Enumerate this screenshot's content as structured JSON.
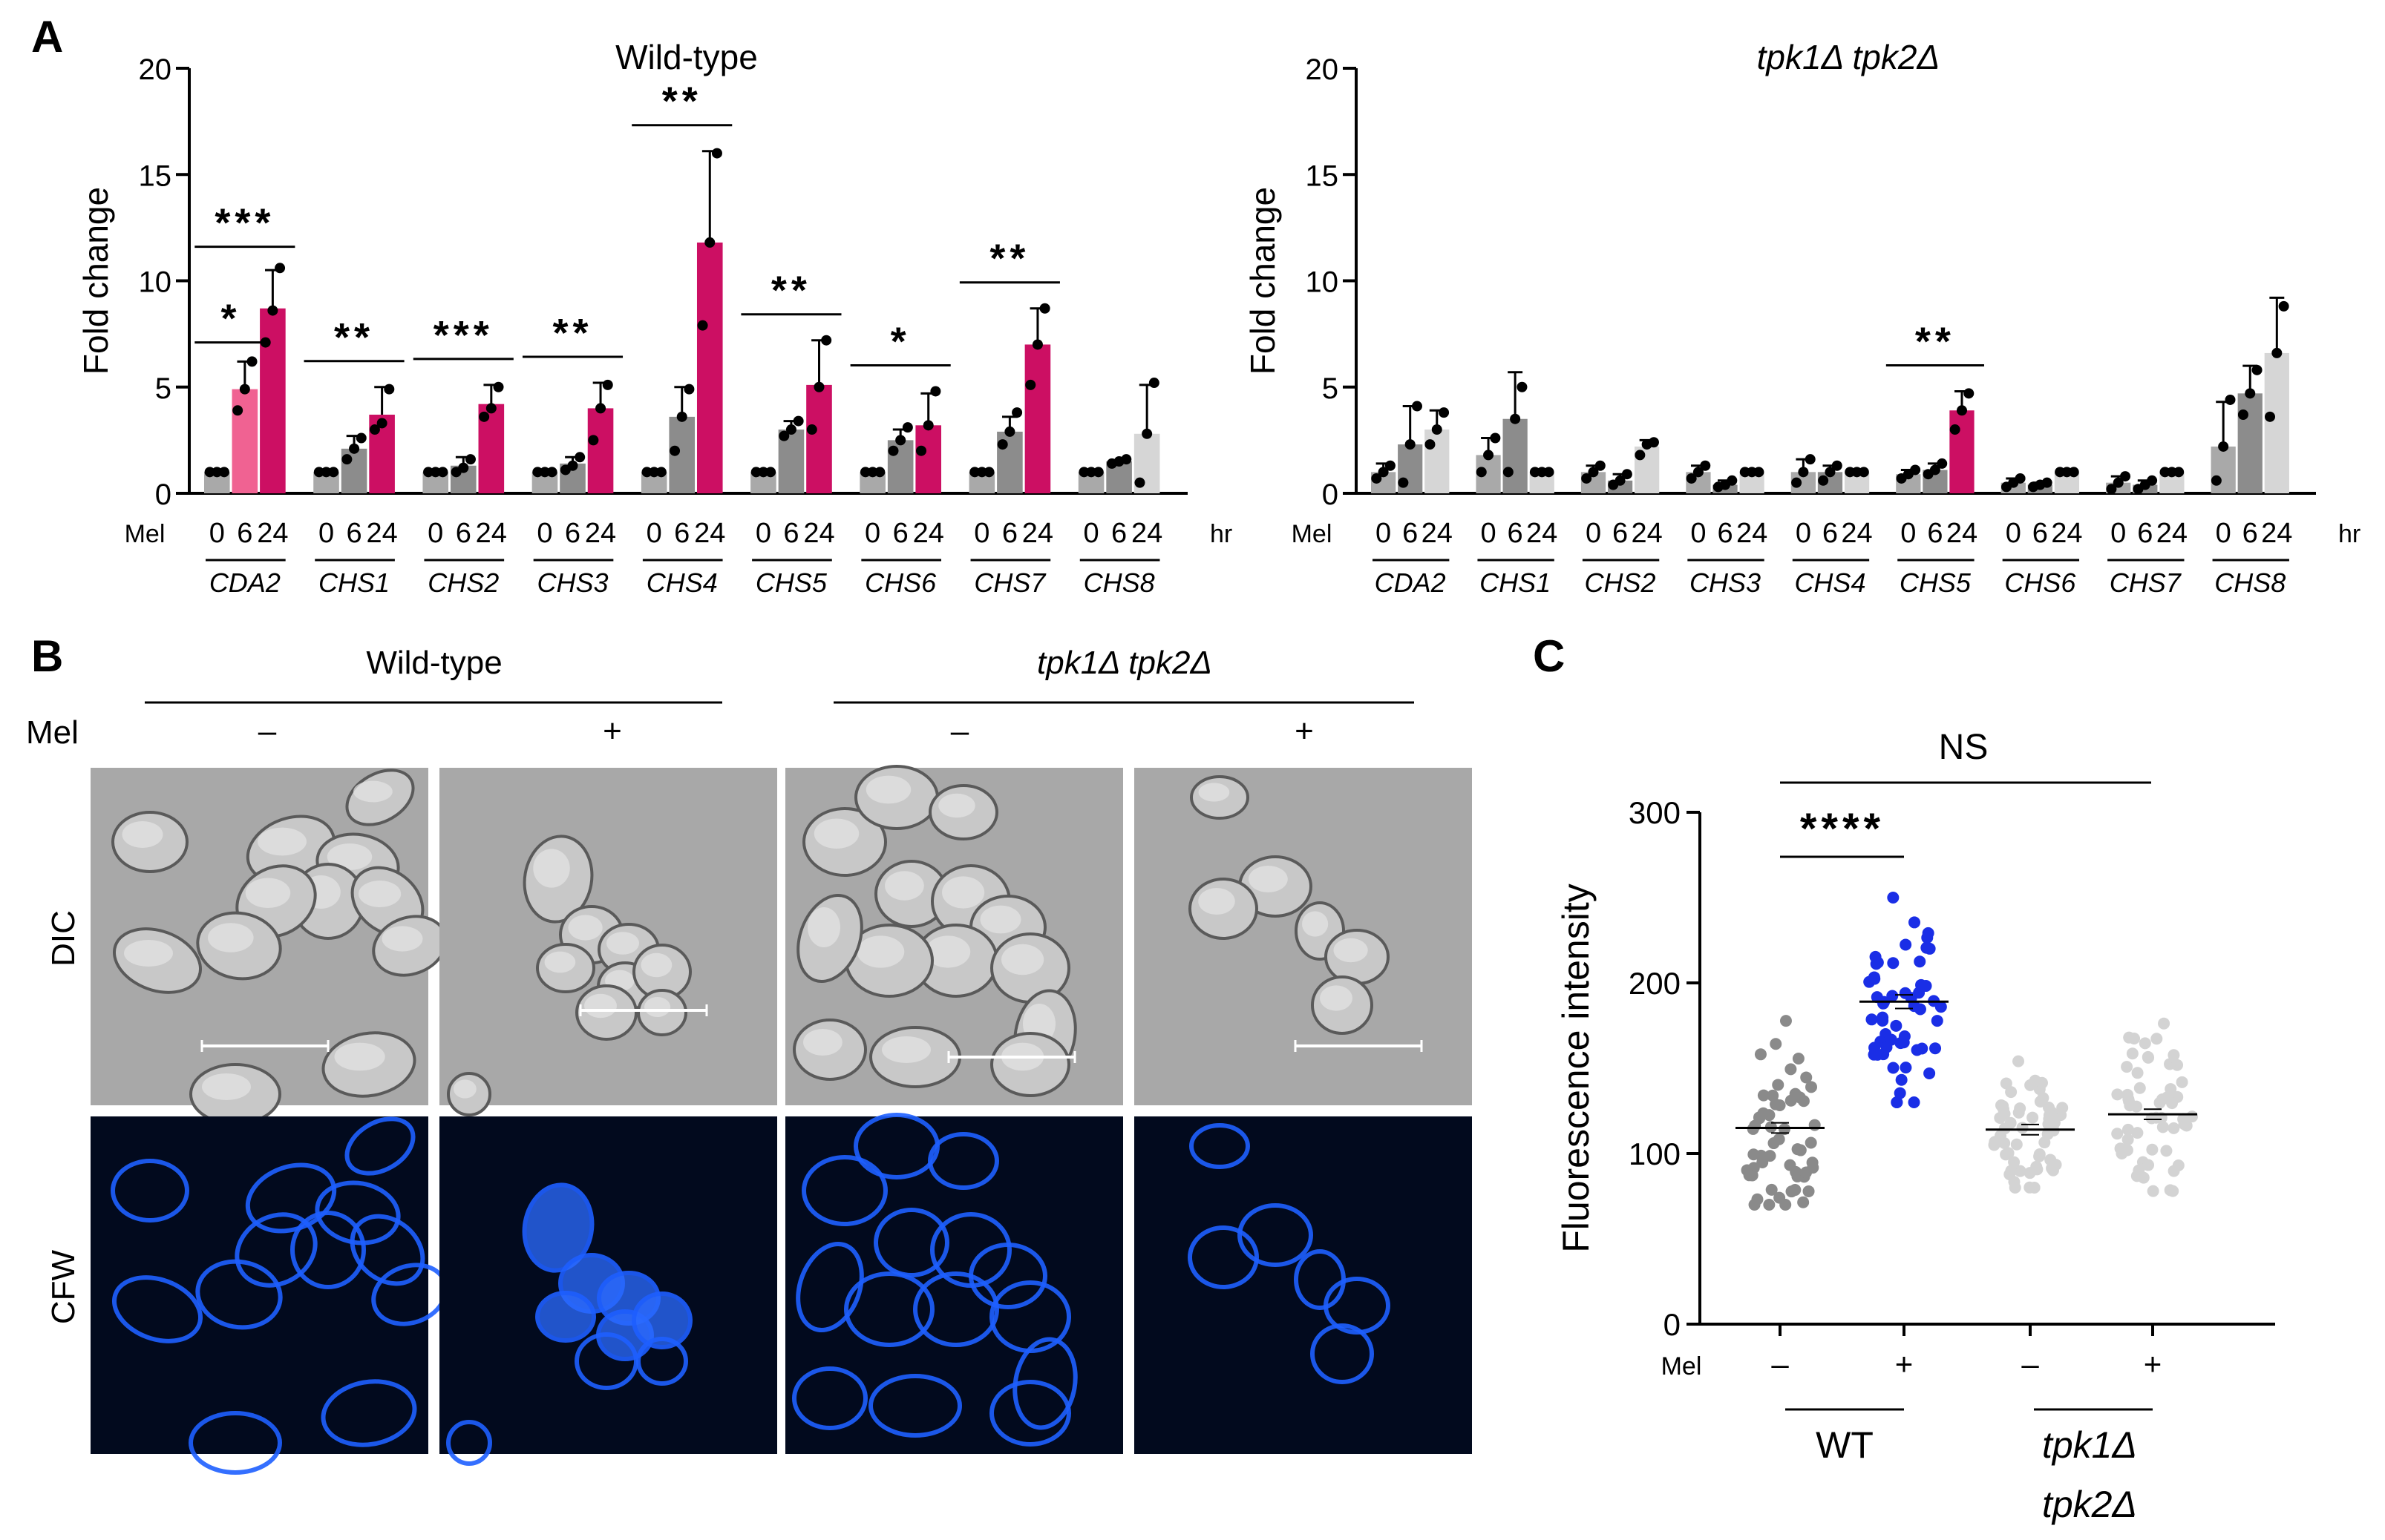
{
  "panels": {
    "A": "A",
    "B": "B",
    "C": "C"
  },
  "colors": {
    "gray0": "#a9a9a9",
    "gray6": "#8c8c8c",
    "gray24": "#d6d6d6",
    "pink6": "#f06292",
    "magenta24": "#cc0f63",
    "dots_wt_minus": "#8a8a8a",
    "dots_wt_plus": "#1a2ee6",
    "dots_mut": "#d3d3d3",
    "dic_bg": "#a8a8a8",
    "cfw_bg": "#020a1e",
    "cfw_cell": "#1e5fff"
  },
  "common": {
    "ylabel_A": "Fold change",
    "mel_label": "Mel",
    "time_labels": [
      "0",
      "6",
      "24"
    ],
    "hr_label": "hr",
    "yticks_A": [
      "0",
      "5",
      "10",
      "15",
      "20"
    ]
  },
  "chart_data": [
    {
      "type": "bar",
      "title": "Wild-type",
      "ylabel": "Fold change",
      "ylim": [
        0,
        20
      ],
      "groups": [
        "CDA2",
        "CHS1",
        "CHS2",
        "CHS3",
        "CHS4",
        "CHS5",
        "CHS6",
        "CHS7",
        "CHS8"
      ],
      "timepoints_hr": [
        "0",
        "6",
        "24"
      ],
      "values": [
        [
          1.0,
          4.9,
          8.7
        ],
        [
          1.0,
          2.1,
          3.7
        ],
        [
          1.0,
          1.3,
          4.2
        ],
        [
          1.0,
          1.4,
          4.0
        ],
        [
          1.0,
          3.6,
          11.8
        ],
        [
          1.0,
          3.0,
          5.1
        ],
        [
          1.0,
          2.5,
          3.2
        ],
        [
          1.0,
          2.9,
          7.0
        ],
        [
          1.0,
          1.5,
          2.8
        ]
      ],
      "errors": [
        [
          0,
          1.3,
          1.8
        ],
        [
          0,
          0.6,
          1.3
        ],
        [
          0,
          0.4,
          0.9
        ],
        [
          0,
          0.3,
          1.2
        ],
        [
          0,
          1.4,
          4.3
        ],
        [
          0,
          0.4,
          2.1
        ],
        [
          0,
          0.5,
          1.5
        ],
        [
          0,
          0.7,
          1.7
        ],
        [
          0,
          0,
          2.3
        ]
      ],
      "points": [
        [
          [
            1,
            1,
            1
          ],
          [
            3.9,
            4.9,
            6.2
          ],
          [
            7.1,
            8.6,
            10.6
          ]
        ],
        [
          [
            1,
            1,
            1
          ],
          [
            1.6,
            2.1,
            2.6
          ],
          [
            3.0,
            3.3,
            4.9
          ]
        ],
        [
          [
            1,
            1,
            1
          ],
          [
            1.0,
            1.2,
            1.6
          ],
          [
            3.6,
            4.0,
            5.0
          ]
        ],
        [
          [
            1,
            1,
            1
          ],
          [
            1.1,
            1.3,
            1.7
          ],
          [
            2.5,
            4.0,
            5.1
          ]
        ],
        [
          [
            1,
            1,
            1
          ],
          [
            2.0,
            3.6,
            4.9
          ],
          [
            7.9,
            11.8,
            16.0
          ]
        ],
        [
          [
            1,
            1,
            1
          ],
          [
            2.7,
            3.0,
            3.4
          ],
          [
            3.0,
            5.0,
            7.2
          ]
        ],
        [
          [
            1,
            1,
            1
          ],
          [
            2.0,
            2.5,
            3.1
          ],
          [
            2.0,
            3.2,
            4.8
          ]
        ],
        [
          [
            1,
            1,
            1
          ],
          [
            2.3,
            2.9,
            3.8
          ],
          [
            5.1,
            7.0,
            8.7
          ]
        ],
        [
          [
            1,
            1,
            1
          ],
          [
            1.4,
            1.5,
            1.6
          ],
          [
            0.5,
            2.8,
            5.2
          ]
        ]
      ],
      "significance": [
        {
          "group": "CDA2",
          "pair": "0-6",
          "label": "*"
        },
        {
          "group": "CDA2",
          "pair": "0-24",
          "label": "***"
        },
        {
          "group": "CHS1",
          "pair": "0-24",
          "label": "**"
        },
        {
          "group": "CHS2",
          "pair": "0-24",
          "label": "***"
        },
        {
          "group": "CHS3",
          "pair": "0-24",
          "label": "**"
        },
        {
          "group": "CHS4",
          "pair": "0-24",
          "label": "**"
        },
        {
          "group": "CHS5",
          "pair": "0-24",
          "label": "**"
        },
        {
          "group": "CHS6",
          "pair": "0-24",
          "label": "*"
        },
        {
          "group": "CHS7",
          "pair": "0-24",
          "label": "**"
        }
      ]
    },
    {
      "type": "bar",
      "title": "tpk1Δ tpk2Δ",
      "ylabel": "Fold change",
      "ylim": [
        0,
        20
      ],
      "groups": [
        "CDA2",
        "CHS1",
        "CHS2",
        "CHS3",
        "CHS4",
        "CHS5",
        "CHS6",
        "CHS7",
        "CHS8"
      ],
      "timepoints_hr": [
        "0",
        "6",
        "24"
      ],
      "values": [
        [
          1.0,
          2.3,
          3.0
        ],
        [
          1.8,
          3.5,
          1.0
        ],
        [
          1.0,
          0.6,
          2.2
        ],
        [
          1.0,
          0.4,
          1.0
        ],
        [
          1.0,
          1.0,
          1.0
        ],
        [
          0.9,
          1.1,
          3.9
        ],
        [
          0.5,
          0.4,
          1.0
        ],
        [
          0.5,
          0.4,
          1.0
        ],
        [
          2.2,
          4.7,
          6.6
        ]
      ],
      "errors": [
        [
          0.4,
          1.8,
          0.9
        ],
        [
          0.8,
          2.2,
          0
        ],
        [
          0.3,
          0.3,
          0.3
        ],
        [
          0.3,
          0.2,
          0
        ],
        [
          0.6,
          0.3,
          0
        ],
        [
          0.2,
          0.3,
          0.9
        ],
        [
          0.2,
          0.1,
          0
        ],
        [
          0.3,
          0.2,
          0
        ],
        [
          2.1,
          1.3,
          2.6
        ]
      ],
      "points": [
        [
          [
            0.7,
            1.0,
            1.3
          ],
          [
            0.5,
            2.3,
            4.1
          ],
          [
            2.3,
            3.0,
            3.8
          ]
        ],
        [
          [
            1.0,
            1.8,
            2.6
          ],
          [
            1.0,
            3.5,
            5.0
          ],
          [
            1,
            1,
            1
          ]
        ],
        [
          [
            0.7,
            1.0,
            1.3
          ],
          [
            0.4,
            0.6,
            0.9
          ],
          [
            1.8,
            2.3,
            2.4
          ]
        ],
        [
          [
            0.7,
            1.0,
            1.3
          ],
          [
            0.3,
            0.4,
            0.6
          ],
          [
            1,
            1,
            1
          ]
        ],
        [
          [
            0.5,
            1.0,
            1.6
          ],
          [
            0.6,
            1.0,
            1.3
          ],
          [
            1,
            1,
            1
          ]
        ],
        [
          [
            0.7,
            0.9,
            1.1
          ],
          [
            0.9,
            1.1,
            1.4
          ],
          [
            3.0,
            3.9,
            4.7
          ]
        ],
        [
          [
            0.3,
            0.5,
            0.7
          ],
          [
            0.3,
            0.4,
            0.5
          ],
          [
            1,
            1,
            1
          ]
        ],
        [
          [
            0.2,
            0.5,
            0.8
          ],
          [
            0.2,
            0.4,
            0.6
          ],
          [
            1,
            1,
            1
          ]
        ],
        [
          [
            0.6,
            2.2,
            4.4
          ],
          [
            3.7,
            4.7,
            5.8
          ],
          [
            3.6,
            6.6,
            8.8
          ]
        ]
      ],
      "significance": [
        {
          "group": "CHS5",
          "pair": "0-24",
          "label": "**"
        }
      ]
    },
    {
      "type": "scatter",
      "ylabel": "Fluorescence intensity",
      "ylim": [
        0,
        300
      ],
      "yticks": [
        "0",
        "100",
        "200",
        "300"
      ],
      "mel_label": "Mel",
      "categories": [
        "–",
        "+",
        "–",
        "+"
      ],
      "group_labels": [
        "WT",
        "tpk1Δ tpk2Δ"
      ],
      "means": [
        115,
        189,
        114,
        123
      ],
      "sem": [
        3,
        4,
        3,
        3
      ],
      "ranges": [
        [
          70,
          200
        ],
        [
          130,
          250
        ],
        [
          80,
          160
        ],
        [
          78,
          187
        ]
      ],
      "n_points": [
        55,
        55,
        55,
        55
      ],
      "significance": [
        {
          "pair": "0-1",
          "label": "****"
        },
        {
          "pair": "0-2",
          "label": "NS"
        }
      ]
    }
  ],
  "panelB": {
    "col_group_labels": [
      "Wild-type",
      "tpk1Δ tpk2Δ"
    ],
    "row_labels": [
      "DIC",
      "CFW"
    ],
    "mel_label": "Mel",
    "conditions": [
      "–",
      "+",
      "–",
      "+"
    ]
  }
}
